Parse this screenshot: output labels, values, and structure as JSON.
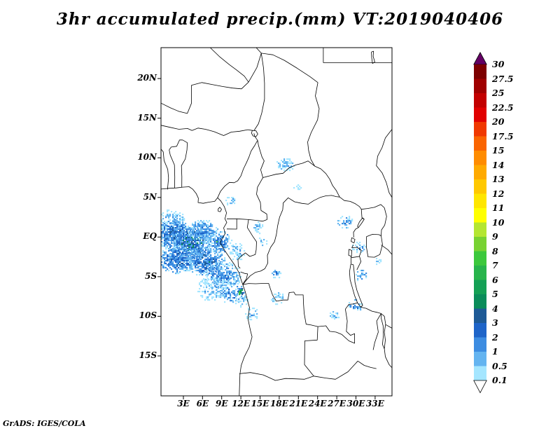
{
  "title": "3hr accumulated precip.(mm) VT:2019040406",
  "credit": "GrADS: IGES/COLA",
  "map": {
    "lat_ticks": [
      {
        "label": "20N",
        "deg": 20
      },
      {
        "label": "15N",
        "deg": 15
      },
      {
        "label": "10N",
        "deg": 10
      },
      {
        "label": "5N",
        "deg": 5
      },
      {
        "label": "EQ",
        "deg": 0
      },
      {
        "label": "5S",
        "deg": -5
      },
      {
        "label": "10S",
        "deg": -10
      },
      {
        "label": "15S",
        "deg": -15
      }
    ],
    "lon_ticks": [
      {
        "label": "3E",
        "deg": 3
      },
      {
        "label": "6E",
        "deg": 6
      },
      {
        "label": "9E",
        "deg": 9
      },
      {
        "label": "12E",
        "deg": 12
      },
      {
        "label": "15E",
        "deg": 15
      },
      {
        "label": "18E",
        "deg": 18
      },
      {
        "label": "21E",
        "deg": 21
      },
      {
        "label": "24E",
        "deg": 24
      },
      {
        "label": "27E",
        "deg": 27
      },
      {
        "label": "30E",
        "deg": 30
      },
      {
        "label": "33E",
        "deg": 33
      }
    ]
  },
  "colorbar": {
    "levels_top_to_bottom": [
      "30",
      "27.5",
      "25",
      "22.5",
      "20",
      "17.5",
      "15",
      "14",
      "13",
      "12",
      "11",
      "10",
      "9",
      "8",
      "7",
      "6",
      "5",
      "4",
      "3",
      "2",
      "1",
      "0.5",
      "0.1"
    ],
    "above_max_color": "#640064",
    "below_min_color": "#ffffff",
    "segment_colors_top_to_bottom": [
      "#7d0000",
      "#a00000",
      "#c30000",
      "#e10000",
      "#f03800",
      "#fa6400",
      "#ff8c00",
      "#ffaa00",
      "#ffc800",
      "#ffe600",
      "#ffff00",
      "#b4e632",
      "#78d232",
      "#3cc83c",
      "#28b44b",
      "#14a055",
      "#0a8c5a",
      "#1e5a96",
      "#1e64c8",
      "#3c8ce1",
      "#64b4f0",
      "#a5e6ff"
    ]
  },
  "chart_data": {
    "type": "heatmap",
    "title": "3hr accumulated precip.(mm) VT:2019040406",
    "units": "mm",
    "valid_time_label": "VT:2019040406",
    "lon_range_deg_east": [
      -0.5,
      35.6
    ],
    "lat_range_deg_north": [
      -20,
      23.9
    ],
    "levels_mm": [
      0.1,
      0.5,
      1,
      2,
      3,
      4,
      5,
      6,
      7,
      8,
      9,
      10,
      11,
      12,
      13,
      14,
      15,
      17.5,
      20,
      22.5,
      25,
      27.5,
      30
    ],
    "precip_regions": [
      {
        "lon": 1.0,
        "lat": 2.2,
        "rx_deg": 2.2,
        "ry_deg": 1.4,
        "peak_mm": 1,
        "density": 0.65
      },
      {
        "lon": 1.5,
        "lat": 0.3,
        "rx_deg": 2.8,
        "ry_deg": 2.0,
        "peak_mm": 3,
        "density": 0.9
      },
      {
        "lon": 4.2,
        "lat": -0.8,
        "rx_deg": 3.0,
        "ry_deg": 2.2,
        "peak_mm": 4,
        "density": 0.9
      },
      {
        "lon": 2.0,
        "lat": -2.8,
        "rx_deg": 3.0,
        "ry_deg": 1.8,
        "peak_mm": 3,
        "density": 0.85
      },
      {
        "lon": 6.5,
        "lat": -3.0,
        "rx_deg": 3.0,
        "ry_deg": 2.0,
        "peak_mm": 3,
        "density": 0.8
      },
      {
        "lon": 9.0,
        "lat": -4.8,
        "rx_deg": 3.0,
        "ry_deg": 1.8,
        "peak_mm": 2,
        "density": 0.7
      },
      {
        "lon": 6.0,
        "lat": 0.8,
        "rx_deg": 2.5,
        "ry_deg": 1.5,
        "peak_mm": 2,
        "density": 0.75
      },
      {
        "lon": 8.6,
        "lat": -0.6,
        "rx_deg": 2.0,
        "ry_deg": 1.6,
        "peak_mm": 2,
        "density": 0.7
      },
      {
        "lon": 7.5,
        "lat": -6.5,
        "rx_deg": 2.5,
        "ry_deg": 1.6,
        "peak_mm": 1,
        "density": 0.5
      },
      {
        "lon": 10.5,
        "lat": -7.0,
        "rx_deg": 2.0,
        "ry_deg": 1.5,
        "peak_mm": 2,
        "density": 0.55
      },
      {
        "lon": 11.8,
        "lat": -6.8,
        "rx_deg": 0.55,
        "ry_deg": 0.5,
        "peak_mm": 8,
        "density": 1.0
      },
      {
        "lon": 19.0,
        "lat": 9.2,
        "rx_deg": 1.6,
        "ry_deg": 0.9,
        "peak_mm": 1,
        "density": 0.6
      },
      {
        "lon": 10.4,
        "lat": 4.7,
        "rx_deg": 1.0,
        "ry_deg": 0.7,
        "peak_mm": 1,
        "density": 0.55
      },
      {
        "lon": 14.6,
        "lat": 1.3,
        "rx_deg": 1.0,
        "ry_deg": 0.8,
        "peak_mm": 1,
        "density": 0.5
      },
      {
        "lon": 17.4,
        "lat": -4.6,
        "rx_deg": 0.8,
        "ry_deg": 0.6,
        "peak_mm": 2,
        "density": 0.6
      },
      {
        "lon": 17.6,
        "lat": -7.6,
        "rx_deg": 1.1,
        "ry_deg": 0.8,
        "peak_mm": 1,
        "density": 0.5
      },
      {
        "lon": 13.6,
        "lat": -9.6,
        "rx_deg": 1.1,
        "ry_deg": 0.8,
        "peak_mm": 1,
        "density": 0.45
      },
      {
        "lon": 28.2,
        "lat": 2.0,
        "rx_deg": 1.3,
        "ry_deg": 0.8,
        "peak_mm": 2,
        "density": 0.6
      },
      {
        "lon": 30.3,
        "lat": -1.2,
        "rx_deg": 1.1,
        "ry_deg": 0.7,
        "peak_mm": 2,
        "density": 0.6
      },
      {
        "lon": 30.8,
        "lat": -4.8,
        "rx_deg": 1.0,
        "ry_deg": 0.8,
        "peak_mm": 2,
        "density": 0.55
      },
      {
        "lon": 29.8,
        "lat": -8.6,
        "rx_deg": 1.1,
        "ry_deg": 0.9,
        "peak_mm": 2,
        "density": 0.55
      },
      {
        "lon": 33.3,
        "lat": -3.0,
        "rx_deg": 0.6,
        "ry_deg": 0.5,
        "peak_mm": 1,
        "density": 0.5
      },
      {
        "lon": 20.7,
        "lat": 6.3,
        "rx_deg": 0.7,
        "ry_deg": 0.45,
        "peak_mm": 0.5,
        "density": 0.45
      },
      {
        "lon": 26.5,
        "lat": -9.8,
        "rx_deg": 0.8,
        "ry_deg": 0.6,
        "peak_mm": 1,
        "density": 0.45
      },
      {
        "lon": 11.3,
        "lat": -1.8,
        "rx_deg": 1.2,
        "ry_deg": 1.2,
        "peak_mm": 1,
        "density": 0.5
      },
      {
        "lon": 8.2,
        "lat": -0.4,
        "rx_deg": 0.4,
        "ry_deg": 0.35,
        "peak_mm": 6,
        "density": 0.9
      },
      {
        "lon": 15.3,
        "lat": -0.5,
        "rx_deg": 0.8,
        "ry_deg": 0.6,
        "peak_mm": 1,
        "density": 0.45
      },
      {
        "lon": 12.1,
        "lat": -8.0,
        "rx_deg": 1.0,
        "ry_deg": 0.8,
        "peak_mm": 1,
        "density": 0.5
      }
    ]
  }
}
